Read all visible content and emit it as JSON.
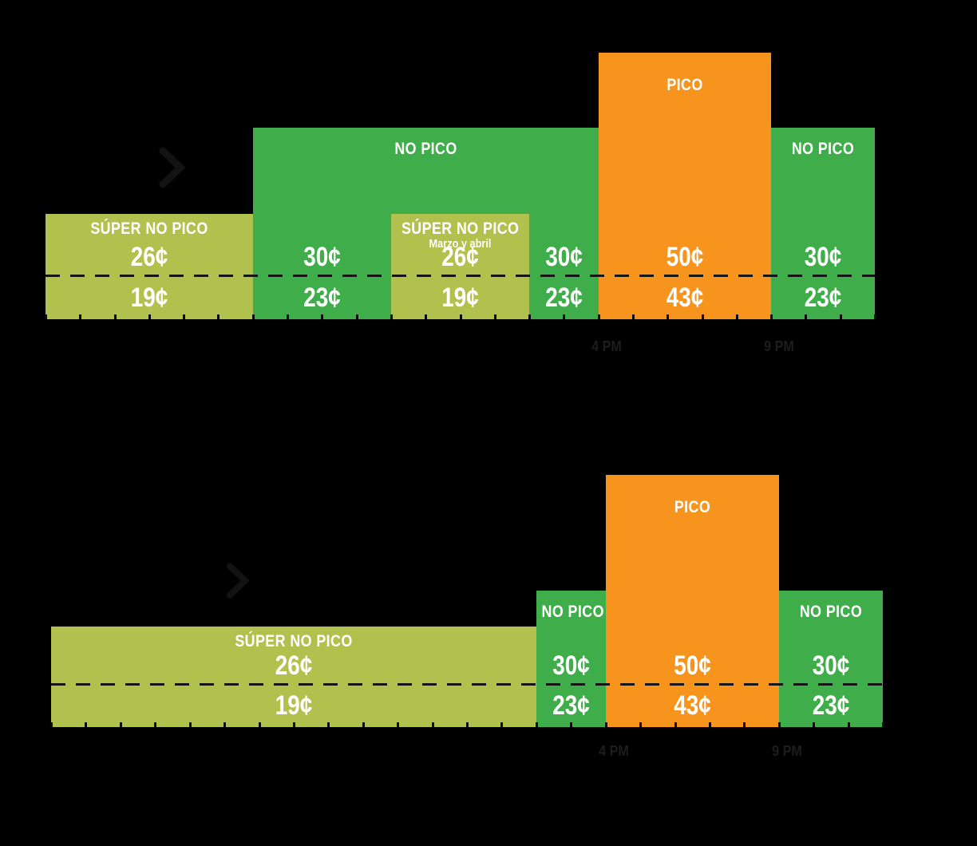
{
  "colors": {
    "background": "#000000",
    "super_offpeak": "#b0c14d",
    "offpeak": "#3fae4a",
    "peak": "#f7941e",
    "price_text": "#ffffff",
    "axis_text": "#1d1d1d",
    "divider": "#161616",
    "tick": "#0d0d0d",
    "arrow": "#131313"
  },
  "icons": {
    "arrow": "chevron-right"
  },
  "chart_data": [
    {
      "type": "bar",
      "id": "weekday",
      "x_unit": "hour-of-day",
      "x_range_hours": [
        0,
        24
      ],
      "grid": false,
      "dashed_divider": true,
      "axis_labels": [
        {
          "label": "4 PM",
          "hour": 16
        },
        {
          "label": "9 PM",
          "hour": 21
        }
      ],
      "blocks": [
        {
          "tier": "super_offpeak",
          "label": "SÚPER NO PICO",
          "from": 0,
          "to": 6,
          "level": 1,
          "prices": [
            {
              "from": 0,
              "to": 6,
              "upper": "26¢",
              "lower": "19¢"
            }
          ]
        },
        {
          "tier": "offpeak",
          "label": "NO PICO",
          "from": 6,
          "to": 16,
          "level": 2,
          "prices": [
            {
              "from": 6,
              "to": 10,
              "upper": "30¢",
              "lower": "23¢"
            },
            {
              "from": 14,
              "to": 16,
              "upper": "30¢",
              "lower": "23¢"
            }
          ]
        },
        {
          "tier": "super_offpeak",
          "label": "SÚPER NO PICO",
          "sublabel": "Marzo y abril",
          "from": 10,
          "to": 14,
          "level": 1,
          "prices": [
            {
              "from": 10,
              "to": 14,
              "upper": "26¢",
              "lower": "19¢"
            }
          ]
        },
        {
          "tier": "peak",
          "label": "PICO",
          "from": 16,
          "to": 21,
          "level": 3,
          "prices": [
            {
              "from": 16,
              "to": 21,
              "upper": "50¢",
              "lower": "43¢"
            }
          ]
        },
        {
          "tier": "offpeak",
          "label": "NO PICO",
          "from": 21,
          "to": 24,
          "level": 2,
          "prices": [
            {
              "from": 21,
              "to": 24,
              "upper": "30¢",
              "lower": "23¢"
            }
          ]
        }
      ]
    },
    {
      "type": "bar",
      "id": "weekend",
      "x_unit": "hour-of-day",
      "x_range_hours": [
        0,
        24
      ],
      "grid": false,
      "dashed_divider": true,
      "axis_labels": [
        {
          "label": "4 PM",
          "hour": 16
        },
        {
          "label": "9 PM",
          "hour": 21
        }
      ],
      "blocks": [
        {
          "tier": "super_offpeak",
          "label": "SÚPER NO PICO",
          "from": 0,
          "to": 14,
          "level": 1,
          "prices": [
            {
              "from": 0,
              "to": 14,
              "upper": "26¢",
              "lower": "19¢"
            }
          ]
        },
        {
          "tier": "offpeak",
          "label": "NO PICO",
          "from": 14,
          "to": 16,
          "level": 2,
          "prices": [
            {
              "from": 14,
              "to": 16,
              "upper": "30¢",
              "lower": "23¢"
            }
          ]
        },
        {
          "tier": "peak",
          "label": "PICO",
          "from": 16,
          "to": 21,
          "level": 3,
          "prices": [
            {
              "from": 16,
              "to": 21,
              "upper": "50¢",
              "lower": "43¢"
            }
          ]
        },
        {
          "tier": "offpeak",
          "label": "NO PICO",
          "from": 21,
          "to": 24,
          "level": 2,
          "prices": [
            {
              "from": 21,
              "to": 24,
              "upper": "30¢",
              "lower": "23¢"
            }
          ]
        }
      ]
    }
  ]
}
